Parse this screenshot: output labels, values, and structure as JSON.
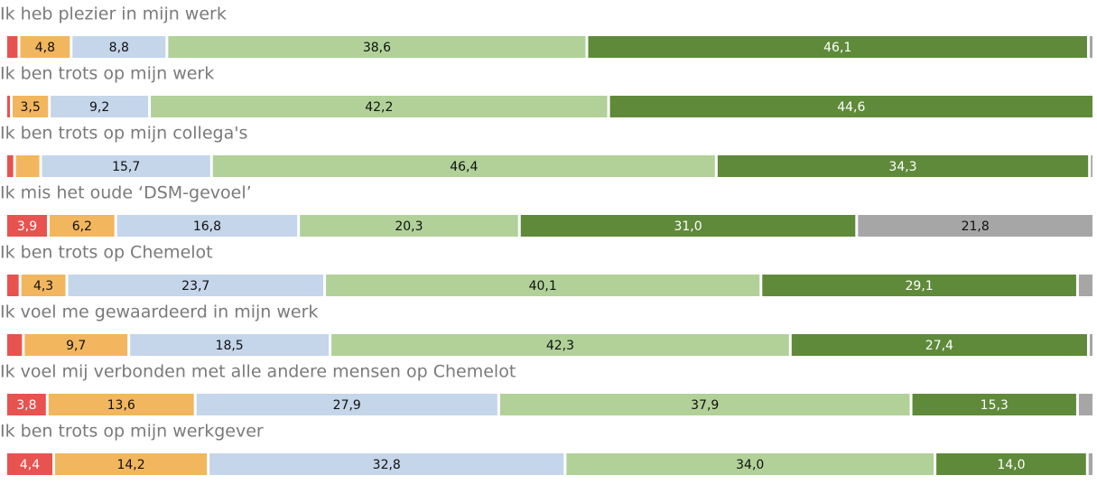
{
  "chart_data": {
    "type": "stacked-bar-horizontal",
    "categories": [
      "Ik heb plezier in mijn werk",
      "Ik ben trots op mijn werk",
      "Ik ben trots op mijn collega's",
      "Ik mis het oude ‘DSM-gevoel’",
      "Ik ben trots op Chemelot",
      "Ik voel me gewaardeerd in mijn werk",
      "Ik voel mij verbonden met alle andere mensen op Chemelot",
      "Ik ben trots op mijn werkgever"
    ],
    "xlim": [
      0,
      100
    ],
    "series": [
      {
        "color": "#e8524f",
        "values": [
          1.2,
          0.5,
          0.8,
          3.9,
          1.3,
          1.6,
          3.8,
          4.4
        ],
        "value_labels": [
          null,
          null,
          null,
          "3,9",
          null,
          null,
          "3,8",
          "4,4"
        ]
      },
      {
        "color": "#f2b65e",
        "values": [
          4.8,
          3.5,
          2.4,
          6.2,
          4.3,
          9.7,
          13.6,
          14.2
        ],
        "value_labels": [
          "4,8",
          "3,5",
          null,
          "6,2",
          "4,3",
          "9,7",
          "13,6",
          "14,2"
        ]
      },
      {
        "color": "#c5d5ea",
        "values": [
          8.8,
          9.2,
          15.7,
          16.8,
          23.7,
          18.5,
          27.9,
          32.8
        ],
        "value_labels": [
          "8,8",
          "9,2",
          "15,7",
          "16,8",
          "23,7",
          "18,5",
          "27,9",
          "32,8"
        ]
      },
      {
        "color": "#b1d198",
        "values": [
          38.6,
          42.2,
          46.4,
          20.3,
          40.1,
          42.3,
          37.9,
          34.0
        ],
        "value_labels": [
          "38,6",
          "42,2",
          "46,4",
          "20,3",
          "40,1",
          "42,3",
          "37,9",
          "34,0"
        ]
      },
      {
        "color": "#5f8a3a",
        "values": [
          46.1,
          44.6,
          34.3,
          31.0,
          29.1,
          27.4,
          15.3,
          14.0
        ],
        "value_labels": [
          "46,1",
          "44,6",
          "34,3",
          "31,0",
          "29,1",
          "27,4",
          "15,3",
          "14,0"
        ]
      },
      {
        "color": "#a6a6a6",
        "values": [
          0.5,
          0,
          0.4,
          21.8,
          1.5,
          0.5,
          1.5,
          0.6
        ],
        "value_labels": [
          null,
          null,
          null,
          "21,8",
          null,
          null,
          null,
          null
        ]
      }
    ]
  }
}
